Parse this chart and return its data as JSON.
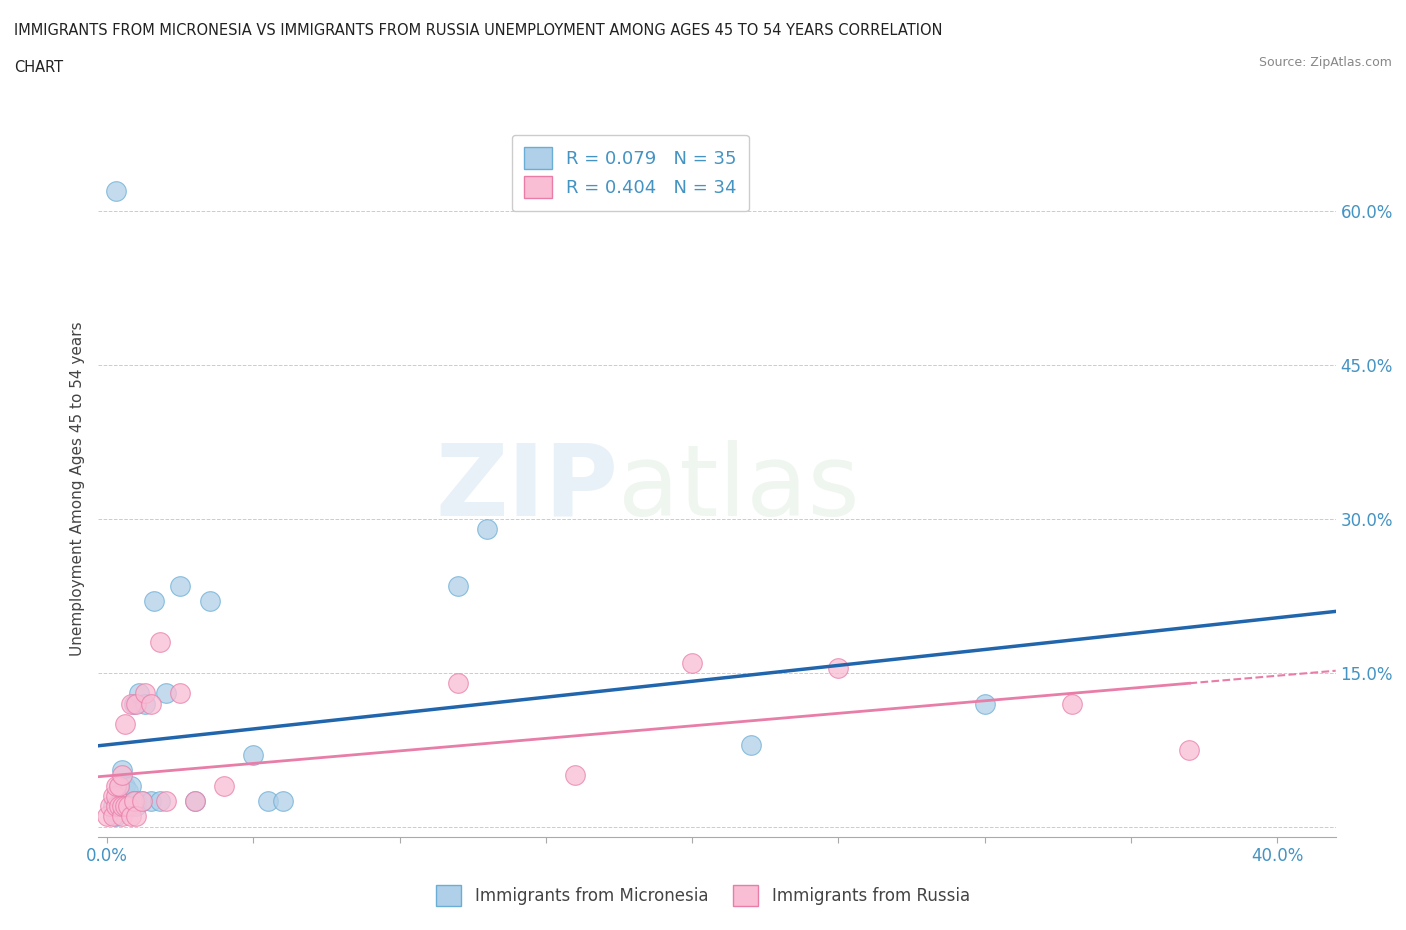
{
  "title_line1": "IMMIGRANTS FROM MICRONESIA VS IMMIGRANTS FROM RUSSIA UNEMPLOYMENT AMONG AGES 45 TO 54 YEARS CORRELATION",
  "title_line2": "CHART",
  "source": "Source: ZipAtlas.com",
  "ylabel_label": "Unemployment Among Ages 45 to 54 years",
  "ytick_positions": [
    0.0,
    0.15,
    0.3,
    0.45,
    0.6
  ],
  "ytick_labels": [
    "",
    "15.0%",
    "30.0%",
    "45.0%",
    "60.0%"
  ],
  "xlim": [
    -0.003,
    0.42
  ],
  "ylim": [
    -0.01,
    0.67
  ],
  "micronesia_x": [
    0.002,
    0.003,
    0.004,
    0.004,
    0.005,
    0.005,
    0.005,
    0.006,
    0.006,
    0.007,
    0.007,
    0.008,
    0.008,
    0.009,
    0.009,
    0.01,
    0.01,
    0.011,
    0.012,
    0.013,
    0.015,
    0.016,
    0.018,
    0.02,
    0.025,
    0.03,
    0.035,
    0.05,
    0.055,
    0.06,
    0.12,
    0.13,
    0.22,
    0.3,
    0.003
  ],
  "micronesia_y": [
    0.02,
    0.01,
    0.02,
    0.04,
    0.02,
    0.03,
    0.055,
    0.02,
    0.04,
    0.02,
    0.035,
    0.02,
    0.04,
    0.025,
    0.12,
    0.02,
    0.025,
    0.13,
    0.025,
    0.12,
    0.025,
    0.22,
    0.025,
    0.13,
    0.235,
    0.025,
    0.22,
    0.07,
    0.025,
    0.025,
    0.235,
    0.29,
    0.08,
    0.12,
    0.62
  ],
  "russia_x": [
    0.0,
    0.001,
    0.002,
    0.002,
    0.003,
    0.003,
    0.003,
    0.004,
    0.004,
    0.005,
    0.005,
    0.005,
    0.006,
    0.006,
    0.007,
    0.008,
    0.008,
    0.009,
    0.01,
    0.01,
    0.012,
    0.013,
    0.015,
    0.018,
    0.02,
    0.025,
    0.03,
    0.04,
    0.12,
    0.16,
    0.2,
    0.25,
    0.33,
    0.37
  ],
  "russia_y": [
    0.01,
    0.02,
    0.01,
    0.03,
    0.02,
    0.03,
    0.04,
    0.02,
    0.04,
    0.01,
    0.02,
    0.05,
    0.02,
    0.1,
    0.02,
    0.01,
    0.12,
    0.025,
    0.01,
    0.12,
    0.025,
    0.13,
    0.12,
    0.18,
    0.025,
    0.13,
    0.025,
    0.04,
    0.14,
    0.05,
    0.16,
    0.155,
    0.12,
    0.075
  ],
  "micronesia_face_color": "#afd0e8",
  "micronesia_edge_color": "#6aaed6",
  "russia_face_color": "#f9bdd4",
  "russia_edge_color": "#e87da8",
  "trend_mic_color": "#2166ac",
  "trend_rus_color": "#e87da8",
  "r_micronesia": 0.079,
  "n_micronesia": 35,
  "r_russia": 0.404,
  "n_russia": 34,
  "watermark_zip": "ZIP",
  "watermark_atlas": "atlas",
  "background_color": "#ffffff",
  "grid_color": "#cccccc"
}
